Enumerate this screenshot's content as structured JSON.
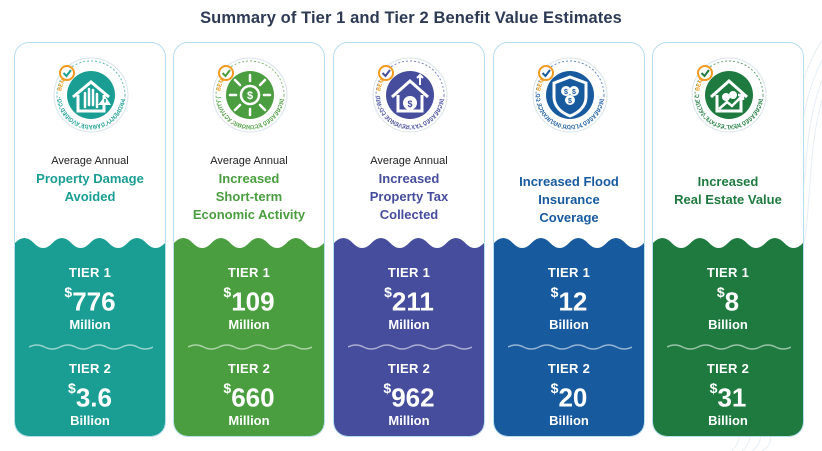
{
  "title": "Summary of Tier 1 and Tier 2 Benefit Value Estimates",
  "cards": [
    {
      "badge_text": "PROPERTY DAMAGE AVOIDED CO-WIDE",
      "badge_word": "BENEFIT",
      "icon": "house-hand-warning-icon",
      "lead": "Average Annual",
      "headline": [
        "Property Damage",
        "Avoided"
      ],
      "color": "#1a9e93",
      "tier1_label": "TIER 1",
      "tier1_value": "776",
      "tier1_unit": "Million",
      "tier2_label": "TIER 2",
      "tier2_value": "3.6",
      "tier2_unit": "Billion"
    },
    {
      "badge_text": "INCREASED ECONOMIC ACTIVITY (GVA)",
      "badge_word": "BENEFIT",
      "icon": "money-arrows-icon",
      "lead": "Average Annual",
      "headline": [
        "Increased",
        "Short-term",
        "Economic Activity"
      ],
      "color": "#4a9e3f",
      "tier1_label": "TIER 1",
      "tier1_value": "109",
      "tier1_unit": "Million",
      "tier2_label": "TIER 2",
      "tier2_value": "660",
      "tier2_unit": "Million"
    },
    {
      "badge_text": "INCREASED TAX REVENUE CO-WIDE",
      "badge_word": "BENEFIT",
      "icon": "house-moneybag-icon",
      "lead": "Average Annual",
      "headline": [
        "Increased",
        "Property Tax",
        "Collected"
      ],
      "color": "#454d9c",
      "tier1_label": "TIER 1",
      "tier1_value": "211",
      "tier1_unit": "Million",
      "tier2_label": "TIER 2",
      "tier2_value": "962",
      "tier2_unit": "Million"
    },
    {
      "badge_text": "INCREASED FLOOD INSURANCE COVERAGE CO-WIDE",
      "badge_word": "BENEFIT",
      "icon": "shield-coins-icon",
      "lead": "",
      "headline": [
        "Increased Flood",
        "Insurance",
        "Coverage"
      ],
      "color": "#175a9e",
      "tier1_label": "TIER 1",
      "tier1_value": "12",
      "tier1_unit": "Billion",
      "tier2_label": "TIER 2",
      "tier2_value": "20",
      "tier2_unit": "Billion"
    },
    {
      "badge_text": "INCREASED REAL ESTATE VALUE CO-WIDE",
      "badge_word": "BENEFIT",
      "icon": "house-growth-icon",
      "lead": "",
      "headline": [
        "Increased",
        "Real Estate Value"
      ],
      "color": "#1e7a3e",
      "tier1_label": "TIER 1",
      "tier1_value": "8",
      "tier1_unit": "Billion",
      "tier2_label": "TIER 2",
      "tier2_value": "31",
      "tier2_unit": "Billion"
    }
  ]
}
